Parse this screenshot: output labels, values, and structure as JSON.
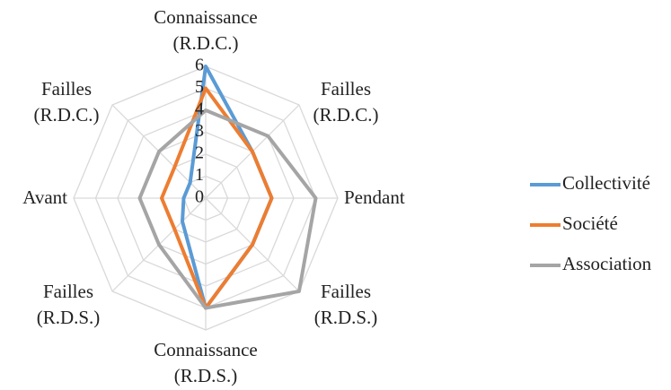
{
  "chart_data": {
    "type": "radar",
    "categories": [
      "Connaissance (R.D.C.)",
      "Failles (R.D.C.)",
      "Pendant",
      "Failles (R.D.S.)",
      "Connaissance (R.D.S.)",
      "Failles (R.D.S.)",
      "Avant",
      "Failles (R.D.C.)"
    ],
    "series": [
      {
        "name": "Collectivité",
        "color": "#5b9bd5",
        "values": [
          6,
          3,
          3,
          3,
          5,
          1.5,
          1,
          1
        ]
      },
      {
        "name": "Société",
        "color": "#ed7d31",
        "values": [
          5,
          3,
          3,
          3,
          5,
          2,
          2,
          2
        ]
      },
      {
        "name": "Association",
        "color": "#a5a5a5",
        "values": [
          4,
          4,
          5,
          6,
          5,
          3,
          3,
          3
        ]
      }
    ],
    "ylim": [
      0,
      6
    ],
    "yticks": [
      0,
      1,
      2,
      3,
      4,
      5,
      6
    ],
    "grid": true,
    "legend": "right"
  }
}
